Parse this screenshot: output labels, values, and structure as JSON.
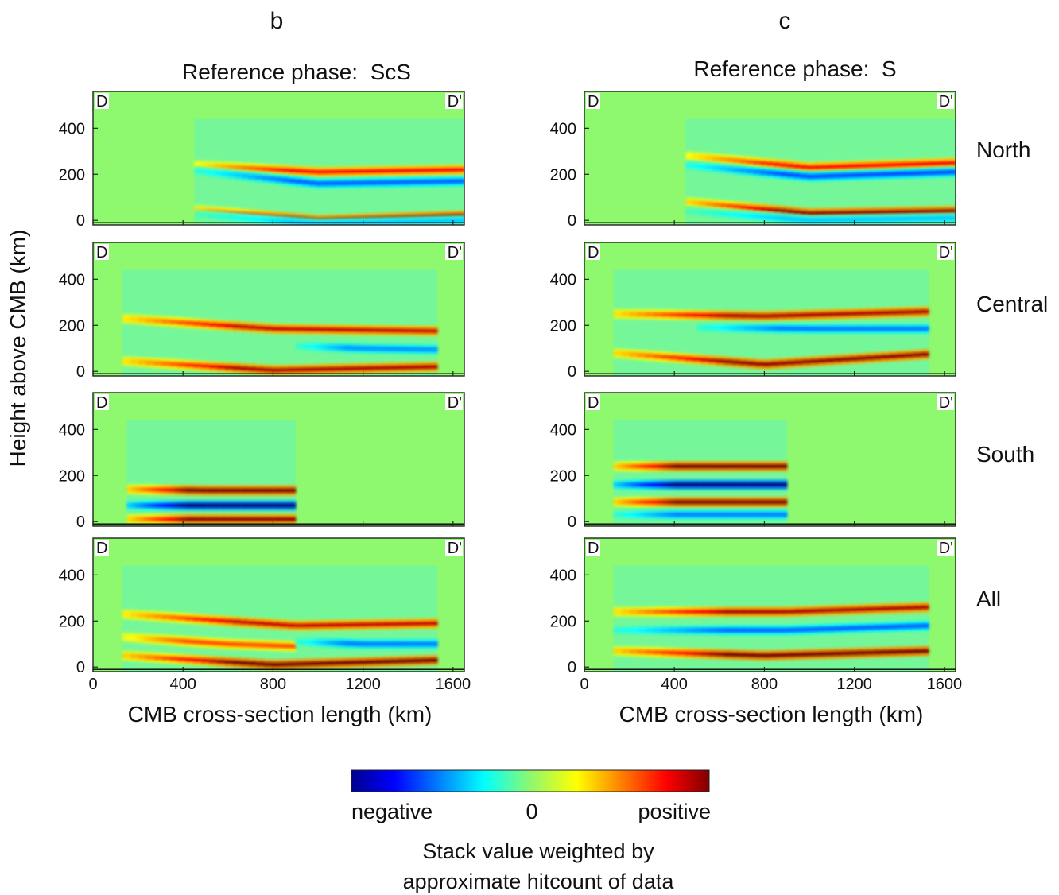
{
  "figure": {
    "y_axis_label": "Height above CMB (km)",
    "x_axis_label": "CMB cross-section length (km)",
    "region_labels": [
      "North",
      "Central",
      "South",
      "All"
    ],
    "corner_labels": {
      "left": "D",
      "right": "D'"
    }
  },
  "columns": [
    {
      "letter": "b",
      "title": "Reference phase:  ScS"
    },
    {
      "letter": "c",
      "title": "Reference phase:  S"
    }
  ],
  "colorbar": {
    "colormap": "jet",
    "low_label": "negative",
    "mid_label": "0",
    "high_label": "positive",
    "caption_line1": "Stack value weighted by",
    "caption_line2": "approximate hitcount of data"
  },
  "colors": {
    "background_field": "#8ef86e",
    "weak_field": "#6cf7a8",
    "jet_stops": [
      "#00008f",
      "#0000ff",
      "#00ffff",
      "#8ef86e",
      "#ffff00",
      "#ff0000",
      "#800000"
    ]
  },
  "chart_data": [
    {
      "type": "heatmap",
      "column": "b",
      "reference_phase": "ScS",
      "region": "North",
      "xlim": [
        0,
        1650
      ],
      "ylim": [
        -20,
        560
      ],
      "x_ticks": [
        0,
        400,
        800,
        1200,
        1600
      ],
      "y_ticks": [
        0,
        200,
        400
      ],
      "data_extent_x": [
        450,
        1650
      ],
      "bands": [
        {
          "sign": "positive",
          "amplitude": 0.75,
          "x": [
            450,
            1000,
            1650
          ],
          "y": [
            240,
            210,
            220
          ]
        },
        {
          "sign": "negative",
          "amplitude": 0.55,
          "x": [
            450,
            1000,
            1650
          ],
          "y": [
            215,
            160,
            170
          ]
        },
        {
          "sign": "positive",
          "amplitude": 0.95,
          "x": [
            450,
            1000,
            1650
          ],
          "y": [
            45,
            0,
            20
          ]
        },
        {
          "sign": "negative",
          "amplitude": 0.35,
          "x": [
            450,
            1000,
            1650
          ],
          "y": [
            25,
            -15,
            0
          ]
        }
      ]
    },
    {
      "type": "heatmap",
      "column": "b",
      "reference_phase": "ScS",
      "region": "Central",
      "xlim": [
        0,
        1650
      ],
      "ylim": [
        -20,
        560
      ],
      "x_ticks": [
        0,
        400,
        800,
        1200,
        1600
      ],
      "y_ticks": [
        0,
        200,
        400
      ],
      "data_extent_x": [
        130,
        1530
      ],
      "bands": [
        {
          "sign": "positive",
          "amplitude": 0.85,
          "x": [
            130,
            800,
            1530
          ],
          "y": [
            230,
            185,
            175
          ]
        },
        {
          "sign": "negative",
          "amplitude": 0.45,
          "x": [
            900,
            1200,
            1530
          ],
          "y": [
            110,
            100,
            95
          ]
        },
        {
          "sign": "positive",
          "amplitude": 0.9,
          "x": [
            130,
            800,
            1530
          ],
          "y": [
            45,
            5,
            20
          ]
        }
      ]
    },
    {
      "type": "heatmap",
      "column": "b",
      "reference_phase": "ScS",
      "region": "South",
      "xlim": [
        0,
        1650
      ],
      "ylim": [
        -20,
        560
      ],
      "x_ticks": [
        0,
        400,
        800,
        1200,
        1600
      ],
      "y_ticks": [
        0,
        200,
        400
      ],
      "data_extent_x": [
        150,
        900
      ],
      "bands": [
        {
          "sign": "positive",
          "amplitude": 1.0,
          "x": [
            150,
            500,
            900
          ],
          "y": [
            140,
            135,
            135
          ]
        },
        {
          "sign": "negative",
          "amplitude": 1.0,
          "x": [
            150,
            500,
            900
          ],
          "y": [
            70,
            70,
            70
          ]
        },
        {
          "sign": "positive",
          "amplitude": 0.95,
          "x": [
            150,
            500,
            900
          ],
          "y": [
            10,
            10,
            10
          ]
        }
      ]
    },
    {
      "type": "heatmap",
      "column": "b",
      "reference_phase": "ScS",
      "region": "All",
      "xlim": [
        0,
        1650
      ],
      "ylim": [
        -20,
        560
      ],
      "x_ticks": [
        0,
        400,
        800,
        1200,
        1600
      ],
      "y_ticks": [
        0,
        200,
        400
      ],
      "data_extent_x": [
        130,
        1530
      ],
      "bands": [
        {
          "sign": "positive",
          "amplitude": 0.85,
          "x": [
            130,
            900,
            1530
          ],
          "y": [
            230,
            180,
            190
          ]
        },
        {
          "sign": "positive",
          "amplitude": 0.6,
          "x": [
            130,
            600,
            900
          ],
          "y": [
            130,
            100,
            90
          ]
        },
        {
          "sign": "negative",
          "amplitude": 0.5,
          "x": [
            900,
            1200,
            1530
          ],
          "y": [
            110,
            100,
            100
          ]
        },
        {
          "sign": "positive",
          "amplitude": 1.0,
          "x": [
            130,
            800,
            1530
          ],
          "y": [
            50,
            10,
            30
          ]
        }
      ]
    },
    {
      "type": "heatmap",
      "column": "c",
      "reference_phase": "S",
      "region": "North",
      "xlim": [
        0,
        1650
      ],
      "ylim": [
        -20,
        560
      ],
      "x_ticks": [
        0,
        400,
        800,
        1200,
        1600
      ],
      "y_ticks": [
        0,
        200,
        400
      ],
      "data_extent_x": [
        450,
        1650
      ],
      "bands": [
        {
          "sign": "positive",
          "amplitude": 0.75,
          "x": [
            450,
            1000,
            1650
          ],
          "y": [
            280,
            230,
            250
          ]
        },
        {
          "sign": "negative",
          "amplitude": 0.6,
          "x": [
            450,
            1000,
            1650
          ],
          "y": [
            240,
            190,
            210
          ]
        },
        {
          "sign": "positive",
          "amplitude": 0.95,
          "x": [
            450,
            1000,
            1650
          ],
          "y": [
            80,
            30,
            40
          ]
        },
        {
          "sign": "negative",
          "amplitude": 0.35,
          "x": [
            450,
            1000,
            1650
          ],
          "y": [
            40,
            0,
            10
          ]
        }
      ]
    },
    {
      "type": "heatmap",
      "column": "c",
      "reference_phase": "S",
      "region": "Central",
      "xlim": [
        0,
        1650
      ],
      "ylim": [
        -20,
        560
      ],
      "x_ticks": [
        0,
        400,
        800,
        1200,
        1600
      ],
      "y_ticks": [
        0,
        200,
        400
      ],
      "data_extent_x": [
        130,
        1530
      ],
      "bands": [
        {
          "sign": "positive",
          "amplitude": 0.9,
          "x": [
            130,
            800,
            1530
          ],
          "y": [
            250,
            240,
            260
          ]
        },
        {
          "sign": "negative",
          "amplitude": 0.5,
          "x": [
            500,
            1000,
            1530
          ],
          "y": [
            190,
            185,
            185
          ]
        },
        {
          "sign": "positive",
          "amplitude": 0.95,
          "x": [
            130,
            800,
            1530
          ],
          "y": [
            80,
            30,
            75
          ]
        }
      ]
    },
    {
      "type": "heatmap",
      "column": "c",
      "reference_phase": "S",
      "region": "South",
      "xlim": [
        0,
        1650
      ],
      "ylim": [
        -20,
        560
      ],
      "x_ticks": [
        0,
        400,
        800,
        1200,
        1600
      ],
      "y_ticks": [
        0,
        200,
        400
      ],
      "data_extent_x": [
        130,
        900
      ],
      "bands": [
        {
          "sign": "positive",
          "amplitude": 1.0,
          "x": [
            130,
            500,
            900
          ],
          "y": [
            240,
            240,
            240
          ]
        },
        {
          "sign": "negative",
          "amplitude": 1.0,
          "x": [
            130,
            500,
            900
          ],
          "y": [
            160,
            160,
            160
          ]
        },
        {
          "sign": "positive",
          "amplitude": 1.0,
          "x": [
            130,
            500,
            900
          ],
          "y": [
            85,
            85,
            85
          ]
        },
        {
          "sign": "negative",
          "amplitude": 0.5,
          "x": [
            130,
            500,
            900
          ],
          "y": [
            30,
            30,
            30
          ]
        }
      ]
    },
    {
      "type": "heatmap",
      "column": "c",
      "reference_phase": "S",
      "region": "All",
      "xlim": [
        0,
        1650
      ],
      "ylim": [
        -20,
        560
      ],
      "x_ticks": [
        0,
        400,
        800,
        1200,
        1600
      ],
      "y_ticks": [
        0,
        200,
        400
      ],
      "data_extent_x": [
        130,
        1530
      ],
      "bands": [
        {
          "sign": "positive",
          "amplitude": 0.9,
          "x": [
            130,
            900,
            1530
          ],
          "y": [
            240,
            240,
            260
          ]
        },
        {
          "sign": "negative",
          "amplitude": 0.55,
          "x": [
            130,
            900,
            1530
          ],
          "y": [
            160,
            160,
            180
          ]
        },
        {
          "sign": "positive",
          "amplitude": 1.0,
          "x": [
            130,
            800,
            1530
          ],
          "y": [
            70,
            50,
            70
          ]
        }
      ]
    }
  ]
}
